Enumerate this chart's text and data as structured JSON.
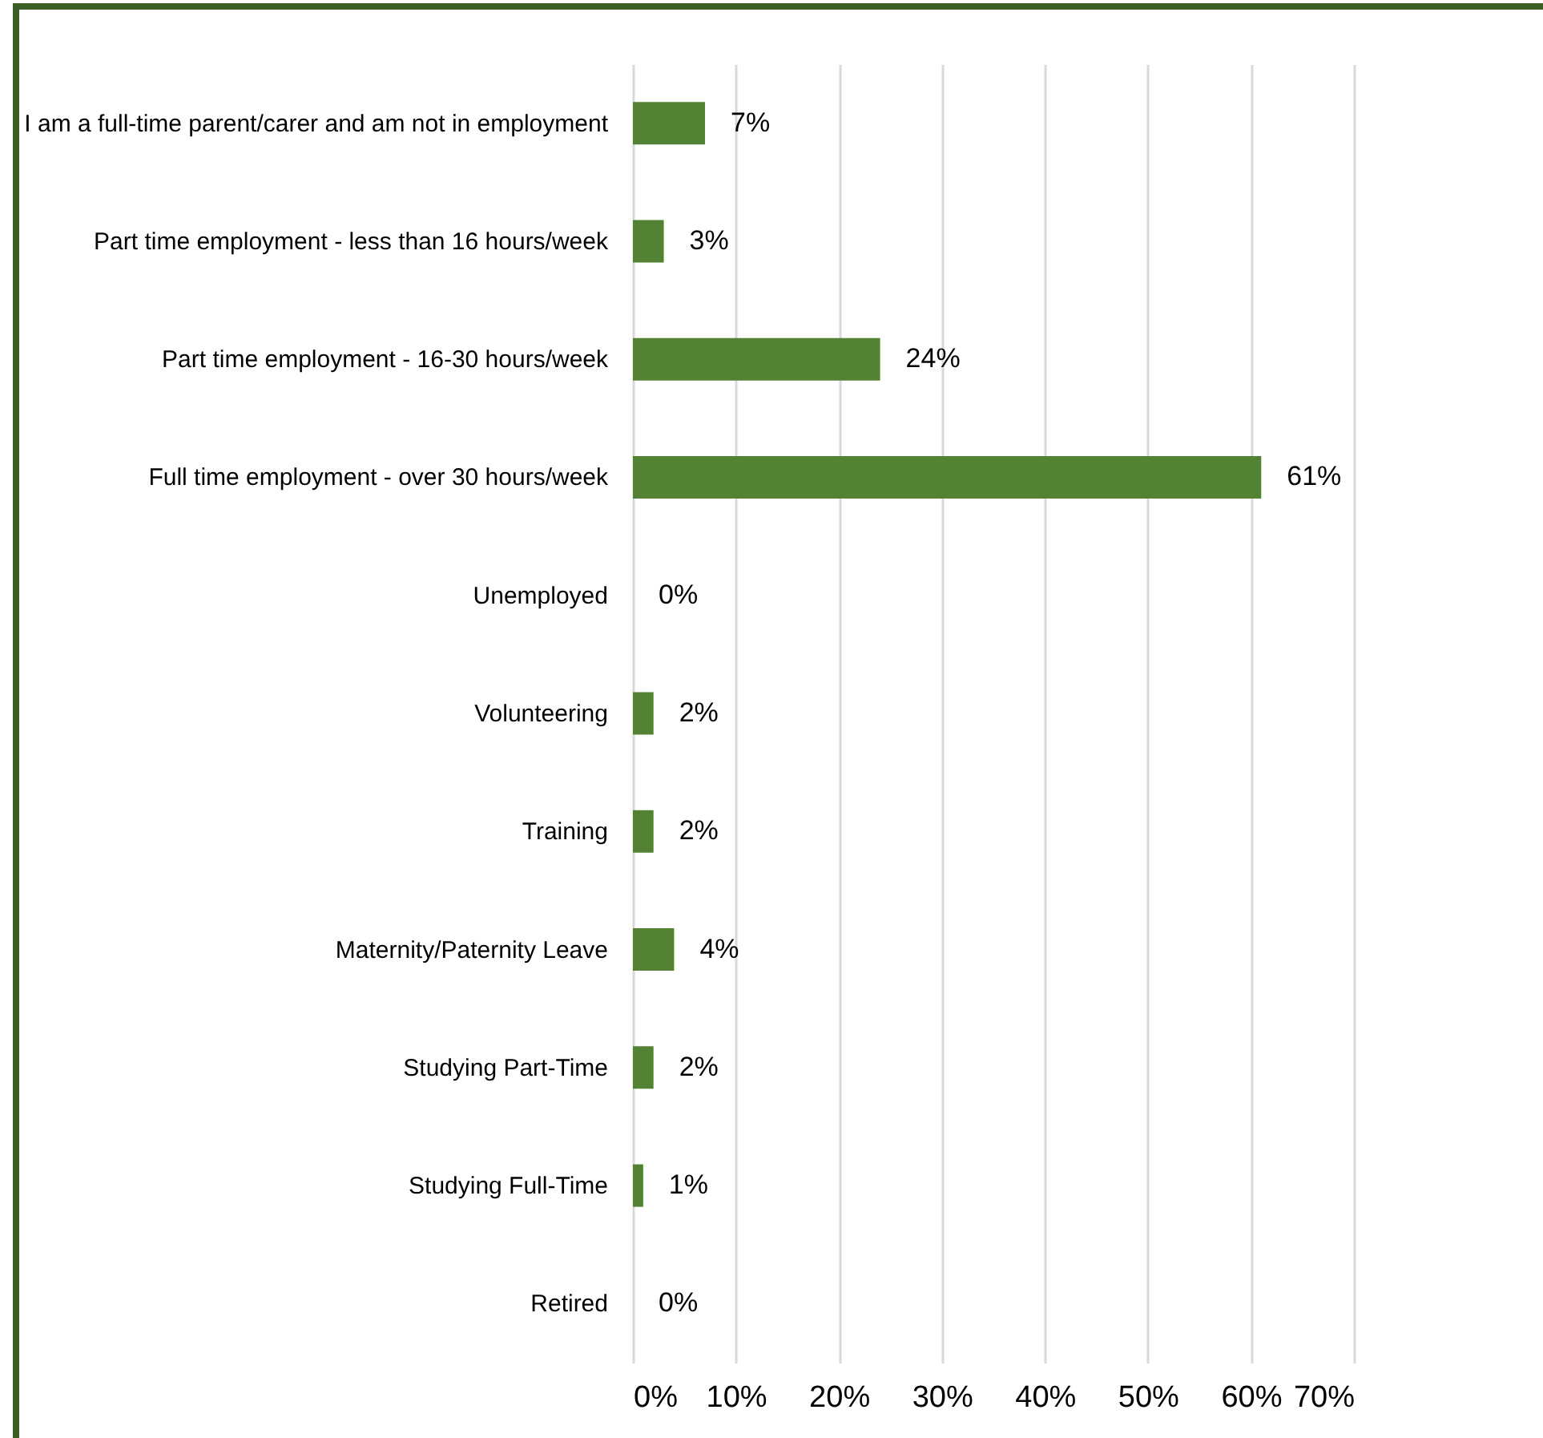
{
  "chart_data": {
    "type": "bar",
    "orientation": "horizontal",
    "categories": [
      "I am a full-time parent/carer and am not in employment",
      "Part time employment - less than 16 hours/week",
      "Part time employment - 16-30 hours/week",
      "Full time employment - over 30 hours/week",
      "Unemployed",
      "Volunteering",
      "Training",
      "Maternity/Paternity Leave",
      "Studying Part-Time",
      "Studying Full-Time",
      "Retired"
    ],
    "values": [
      7,
      3,
      24,
      61,
      0,
      2,
      2,
      4,
      2,
      1,
      0
    ],
    "value_labels": [
      "7%",
      "3%",
      "24%",
      "61%",
      "0%",
      "2%",
      "2%",
      "4%",
      "2%",
      "1%",
      "0%"
    ],
    "color": "#548235",
    "xlim": [
      0,
      70
    ],
    "xticks": [
      {
        "value": 0,
        "label": "0%"
      },
      {
        "value": 10,
        "label": "10%"
      },
      {
        "value": 20,
        "label": "20%"
      },
      {
        "value": 30,
        "label": "30%"
      },
      {
        "value": 40,
        "label": "40%"
      },
      {
        "value": 50,
        "label": "50%"
      },
      {
        "value": 60,
        "label": "60%"
      },
      {
        "value": 70,
        "label": "70%"
      }
    ],
    "grid": "x"
  }
}
